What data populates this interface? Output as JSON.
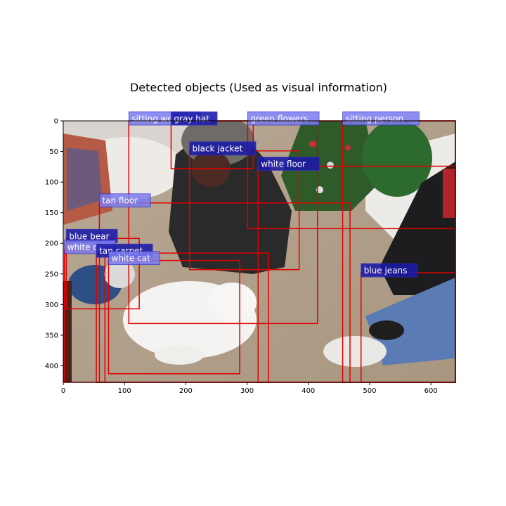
{
  "chart_data": {
    "type": "image-annotation",
    "title": "Detected objects (Used as visual information)",
    "xlim": [
      0,
      640
    ],
    "ylim": [
      427,
      0
    ],
    "xticks": [
      0,
      100,
      200,
      300,
      400,
      500,
      600
    ],
    "yticks": [
      0,
      50,
      100,
      150,
      200,
      250,
      300,
      350,
      400
    ],
    "grid": false,
    "box_color": "#e00000",
    "label_bg_colors": {
      "light": "#7b7bf0",
      "dark": "#1a1aa8"
    },
    "boxes": [
      {
        "label": "sitting woman",
        "x0": 107,
        "y0": 0,
        "x1": 415,
        "y1": 331,
        "style": "light"
      },
      {
        "label": "gray hat",
        "x0": 176,
        "y0": 0,
        "x1": 310,
        "y1": 78,
        "style": "dark"
      },
      {
        "label": "green flowers",
        "x0": 301,
        "y0": 0,
        "x1": 640,
        "y1": 176,
        "style": "light"
      },
      {
        "label": "sitting person",
        "x0": 456,
        "y0": 0,
        "x1": 640,
        "y1": 427,
        "style": "light"
      },
      {
        "label": "black jacket",
        "x0": 206,
        "y0": 49,
        "x1": 385,
        "y1": 243,
        "style": "dark"
      },
      {
        "label": "white floor",
        "x0": 318,
        "y0": 74,
        "x1": 640,
        "y1": 427,
        "style": "dark"
      },
      {
        "label": "tan floor",
        "x0": 59,
        "y0": 134,
        "x1": 468,
        "y1": 427,
        "style": "light"
      },
      {
        "label": "blue bear",
        "x0": 5,
        "y0": 192,
        "x1": 124,
        "y1": 307,
        "style": "dark"
      },
      {
        "label": "white cat",
        "x0": 2,
        "y0": 210,
        "x1": 68,
        "y1": 427,
        "style": "light"
      },
      {
        "label": "tan carpet",
        "x0": 54,
        "y0": 216,
        "x1": 335,
        "y1": 427,
        "style": "dark"
      },
      {
        "label": "white cat",
        "x0": 74,
        "y0": 228,
        "x1": 288,
        "y1": 413,
        "style": "light"
      },
      {
        "label": "blue jeans",
        "x0": 486,
        "y0": 248,
        "x1": 640,
        "y1": 427,
        "style": "dark"
      }
    ]
  }
}
